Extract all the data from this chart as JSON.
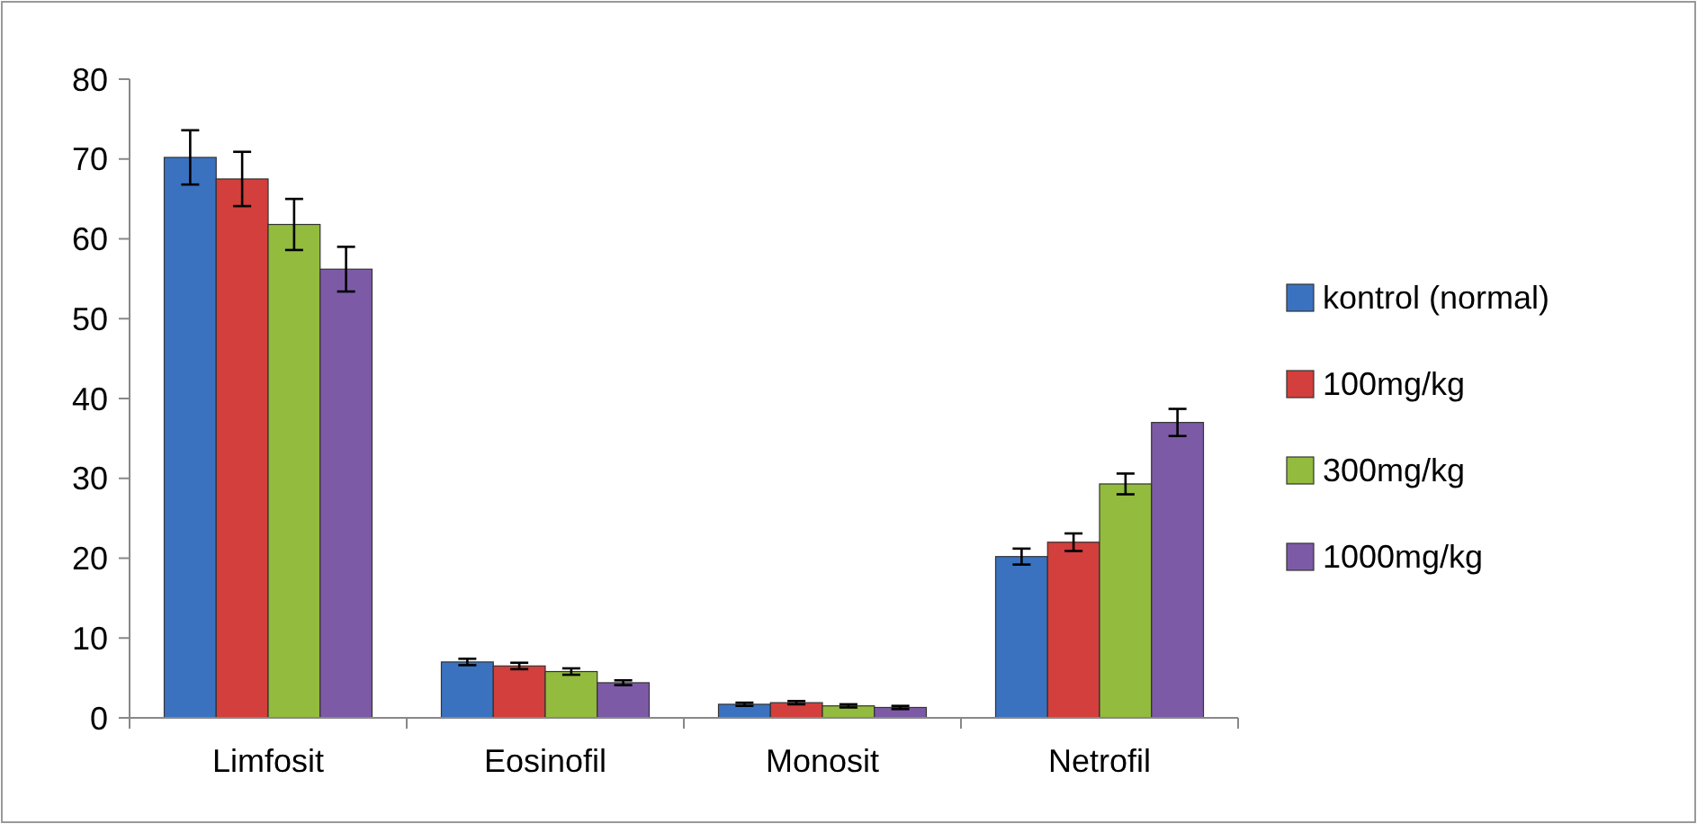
{
  "chart_data": {
    "type": "bar",
    "categories": [
      "Limfosit",
      "Eosinofil",
      "Monosit",
      "Netrofil"
    ],
    "series": [
      {
        "name": "kontrol (normal)",
        "color": "#3a72c0",
        "values": [
          70.2,
          7,
          1.7,
          20.2
        ],
        "errors": [
          3.4,
          0.4,
          0.2,
          1
        ]
      },
      {
        "name": "100mg/kg",
        "color": "#d23f3c",
        "values": [
          67.5,
          6.5,
          1.9,
          22
        ],
        "errors": [
          3.4,
          0.4,
          0.2,
          1.1
        ]
      },
      {
        "name": "300mg/kg",
        "color": "#93bb3e",
        "values": [
          61.8,
          5.8,
          1.5,
          29.3
        ],
        "errors": [
          3.2,
          0.4,
          0.2,
          1.3
        ]
      },
      {
        "name": "1000mg/kg",
        "color": "#7d5aa6",
        "values": [
          56.2,
          4.4,
          1.3,
          37
        ],
        "errors": [
          2.8,
          0.3,
          0.2,
          1.7
        ]
      }
    ],
    "ylim": [
      0,
      80
    ],
    "yticks": [
      0,
      10,
      20,
      30,
      40,
      50,
      60,
      70,
      80
    ],
    "grid": false,
    "legend": "right"
  }
}
